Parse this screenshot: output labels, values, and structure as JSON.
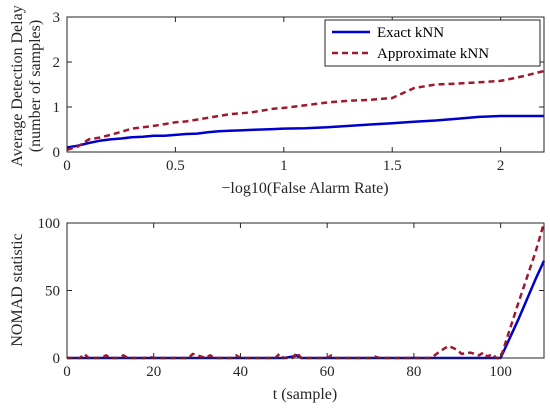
{
  "chart_data": [
    {
      "type": "line",
      "xlabel": "−log10(False Alarm Rate)",
      "ylabel_line1": "Average Detection Delay",
      "ylabel_line2": "(number of samples)",
      "xlim": [
        0,
        2.2
      ],
      "ylim": [
        0,
        3
      ],
      "xticks": [
        0,
        0.5,
        1,
        1.5,
        2
      ],
      "yticks": [
        0,
        1,
        2,
        3
      ],
      "xtick_labels": [
        "0",
        "0.5",
        "1",
        "1.5",
        "2"
      ],
      "ytick_labels": [
        "0",
        "1",
        "2",
        "3"
      ],
      "grid": false,
      "legend_position": "top-right",
      "series": [
        {
          "name": "Exact kNN",
          "color": "#0000cc",
          "style": "solid",
          "x": [
            0,
            0.05,
            0.1,
            0.15,
            0.2,
            0.25,
            0.3,
            0.35,
            0.4,
            0.45,
            0.5,
            0.55,
            0.6,
            0.65,
            0.7,
            0.75,
            0.8,
            0.85,
            0.9,
            0.95,
            1.0,
            1.1,
            1.2,
            1.3,
            1.4,
            1.5,
            1.6,
            1.7,
            1.8,
            1.9,
            2.0,
            2.1,
            2.2
          ],
          "y": [
            0.1,
            0.14,
            0.2,
            0.25,
            0.28,
            0.3,
            0.33,
            0.34,
            0.36,
            0.36,
            0.38,
            0.4,
            0.41,
            0.44,
            0.46,
            0.47,
            0.48,
            0.49,
            0.5,
            0.51,
            0.52,
            0.53,
            0.55,
            0.58,
            0.61,
            0.64,
            0.67,
            0.7,
            0.74,
            0.78,
            0.8,
            0.8,
            0.8
          ]
        },
        {
          "name": "Approximate kNN",
          "color": "#a0182d",
          "style": "dashed",
          "x": [
            0,
            0.05,
            0.1,
            0.15,
            0.2,
            0.25,
            0.3,
            0.35,
            0.4,
            0.45,
            0.5,
            0.55,
            0.6,
            0.65,
            0.7,
            0.75,
            0.8,
            0.85,
            0.9,
            0.95,
            1.0,
            1.1,
            1.2,
            1.3,
            1.4,
            1.5,
            1.6,
            1.7,
            1.8,
            1.9,
            2.0,
            2.1,
            2.2
          ],
          "y": [
            0.05,
            0.12,
            0.28,
            0.32,
            0.38,
            0.45,
            0.52,
            0.55,
            0.58,
            0.62,
            0.66,
            0.68,
            0.72,
            0.76,
            0.8,
            0.84,
            0.86,
            0.88,
            0.92,
            0.96,
            0.98,
            1.04,
            1.1,
            1.14,
            1.16,
            1.2,
            1.42,
            1.5,
            1.52,
            1.55,
            1.58,
            1.68,
            1.8
          ]
        }
      ]
    },
    {
      "type": "line",
      "xlabel": "t (sample)",
      "ylabel": "NOMAD statistic",
      "xlim": [
        0,
        110
      ],
      "ylim": [
        0,
        100
      ],
      "xticks": [
        0,
        20,
        40,
        60,
        80,
        100
      ],
      "yticks": [
        0,
        50,
        100
      ],
      "xtick_labels": [
        "0",
        "20",
        "40",
        "60",
        "80",
        "100"
      ],
      "ytick_labels": [
        "0",
        "50",
        "100"
      ],
      "grid": false,
      "series": [
        {
          "name": "Exact kNN",
          "color": "#0000cc",
          "style": "solid",
          "x": [
            0,
            50,
            52,
            53,
            54,
            100,
            104,
            108,
            110
          ],
          "y": [
            0,
            0,
            1,
            2,
            0,
            0,
            28,
            58,
            72
          ]
        },
        {
          "name": "Approximate kNN",
          "color": "#a0182d",
          "style": "dashed",
          "x": [
            0,
            3,
            4,
            5,
            8,
            9,
            10,
            12,
            13,
            14,
            18,
            19,
            20,
            28,
            29,
            30,
            32,
            33,
            34,
            38,
            39,
            40,
            48,
            49,
            50,
            52,
            53,
            54,
            60,
            61,
            62,
            70,
            71,
            72,
            84,
            86,
            88,
            90,
            91,
            93,
            95,
            96,
            97,
            98,
            99,
            100,
            104,
            108,
            110
          ],
          "y": [
            0,
            0,
            3,
            0,
            0,
            2,
            0,
            0,
            2,
            0,
            0,
            1,
            0,
            0,
            3,
            2,
            0,
            2,
            0,
            0,
            2,
            0,
            0,
            3,
            0,
            0,
            4,
            0,
            0,
            2,
            0,
            0,
            1,
            0,
            0,
            5,
            9,
            6,
            3,
            4,
            2,
            4,
            1,
            3,
            0,
            0,
            40,
            78,
            100
          ]
        }
      ]
    }
  ]
}
